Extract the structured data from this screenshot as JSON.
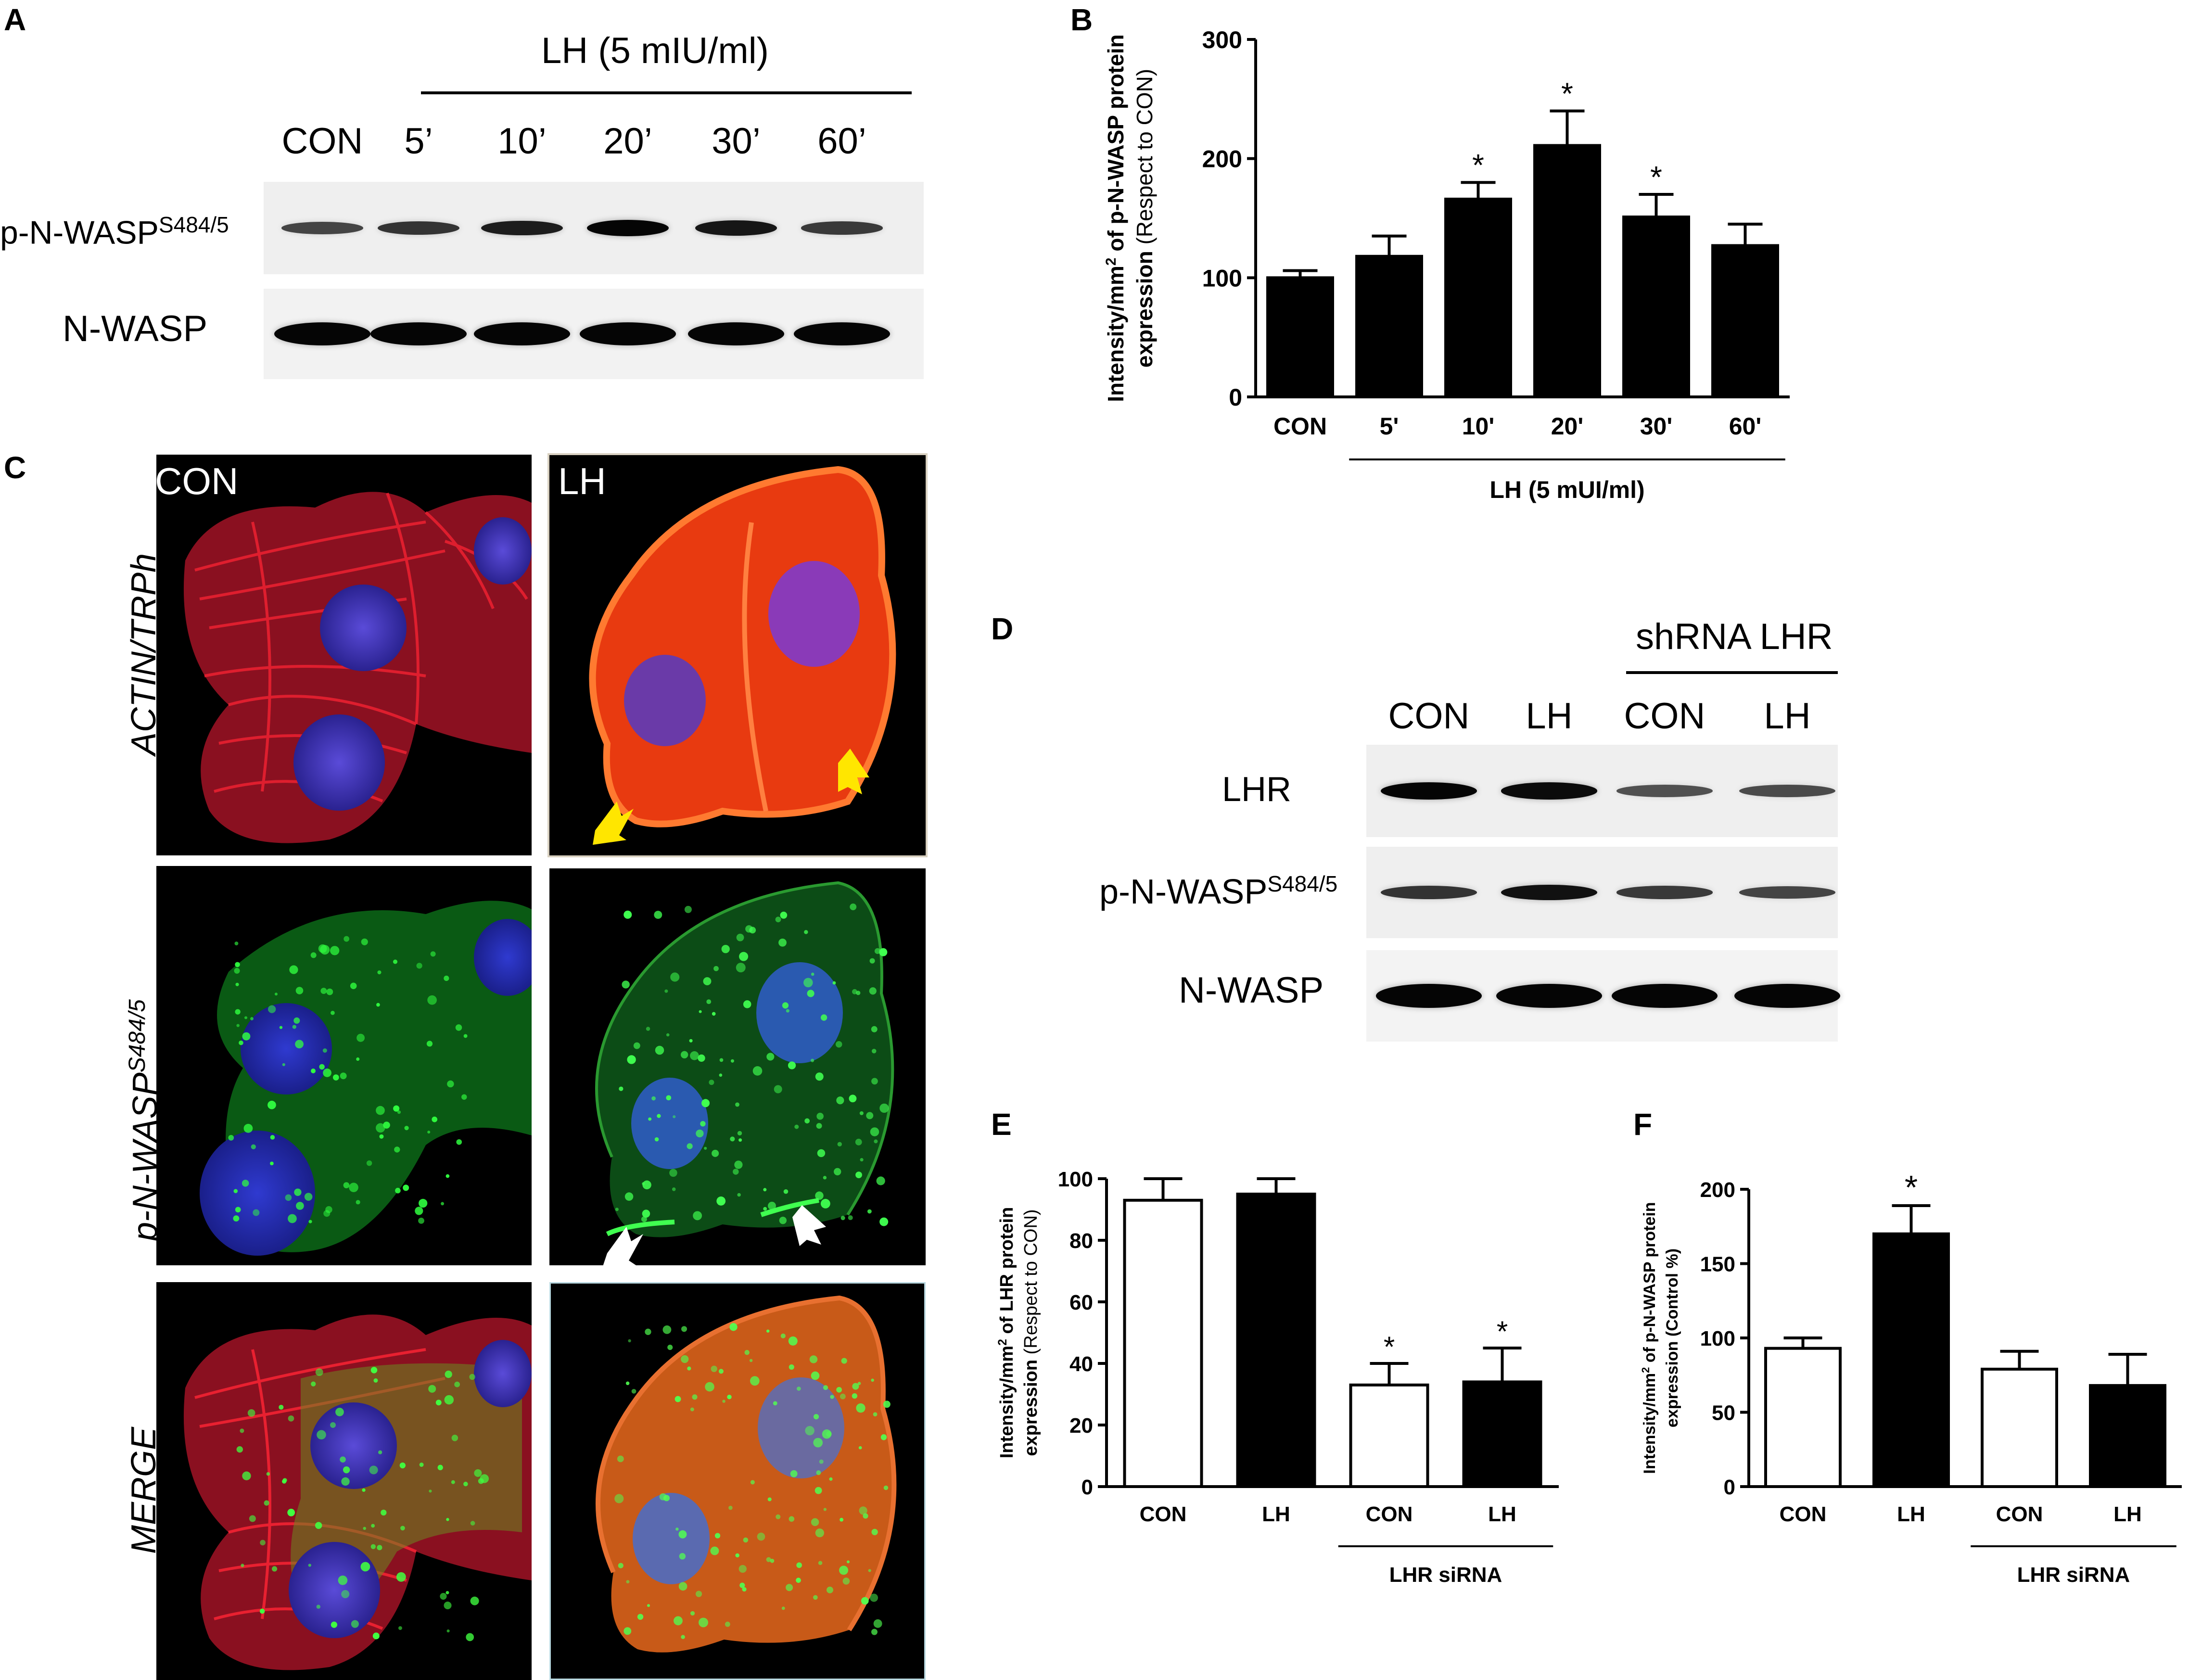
{
  "panels": {
    "A": "A",
    "B": "B",
    "C": "C",
    "D": "D",
    "E": "E",
    "F": "F"
  },
  "blot_a": {
    "treatment": "LH (5 mIU/ml)",
    "lanes": [
      "CON",
      "5’",
      "10’",
      "20’",
      "30’",
      "60’"
    ],
    "row_labels": {
      "phospho": "p-N-WASP",
      "phospho_sup": "S484/5",
      "total": "N-WASP"
    },
    "phospho_intensity": [
      0.45,
      0.6,
      0.8,
      1.0,
      0.85,
      0.55
    ],
    "total_intensity": [
      1,
      1,
      1,
      1,
      1,
      1
    ]
  },
  "blot_d": {
    "group": "shRNA LHR",
    "lanes": [
      "CON",
      "LH",
      "CON",
      "LH"
    ],
    "row_labels": {
      "lhr": "LHR",
      "phospho": "p-N-WASP",
      "phospho_sup": "S484/5",
      "total": "N-WASP"
    },
    "lhr_intensity": [
      1.0,
      0.95,
      0.35,
      0.4
    ],
    "phospho_intensity": [
      0.6,
      0.9,
      0.55,
      0.45
    ],
    "total_intensity": [
      1,
      1,
      1,
      1
    ]
  },
  "micrographs": {
    "columns": [
      "CON",
      "LH"
    ],
    "rows": [
      "ACTIN/TRPh",
      "p-N-WASP",
      "MERGE"
    ],
    "row2_sup": "S484/5",
    "arrow_colors": {
      "actin": "#ffe600",
      "pnwasp": "#ffffff"
    }
  },
  "chart_data": [
    {
      "id": "B",
      "type": "bar",
      "categories": [
        "CON",
        "5'",
        "10'",
        "20'",
        "30'",
        "60'"
      ],
      "values": [
        100,
        118,
        166,
        211,
        151,
        127
      ],
      "errors": [
        6,
        17,
        14,
        29,
        19,
        18
      ],
      "significant": [
        false,
        false,
        true,
        true,
        true,
        false
      ],
      "bar_fill": [
        "#000000",
        "#000000",
        "#000000",
        "#000000",
        "#000000",
        "#000000"
      ],
      "ylim": [
        0,
        300
      ],
      "yticks": [
        0,
        100,
        200,
        300
      ],
      "ylabel_line1": "Intensity/mm",
      "ylabel_sup": "2",
      "ylabel_line1_rest": " of p-N-WASP protein",
      "ylabel_line2": "expression",
      "ylabel_line2_note": " (Respect to  CON)",
      "group_label": "LH (5 mUI/ml)",
      "group_range": [
        1,
        5
      ]
    },
    {
      "id": "E",
      "type": "bar",
      "categories": [
        "CON",
        "LH",
        "CON",
        "LH"
      ],
      "values": [
        93,
        95,
        33,
        34
      ],
      "errors": [
        7,
        5,
        7,
        11
      ],
      "significant": [
        false,
        false,
        true,
        true
      ],
      "bar_fill": [
        "#ffffff",
        "#000000",
        "#ffffff",
        "#000000"
      ],
      "ylim": [
        0,
        100
      ],
      "yticks": [
        0,
        20,
        40,
        60,
        80,
        100
      ],
      "ylabel_line1": "Intensity/mm",
      "ylabel_sup": "2",
      "ylabel_line1_rest": " of LHR protein",
      "ylabel_line2": "expression",
      "ylabel_line2_note": " (Respect to CON)",
      "group_label": "LHR siRNA",
      "group_range": [
        2,
        3
      ]
    },
    {
      "id": "F",
      "type": "bar",
      "categories": [
        "CON",
        "LH",
        "CON",
        "LH"
      ],
      "values": [
        93,
        170,
        79,
        68
      ],
      "errors": [
        7,
        19,
        12,
        21
      ],
      "significant": [
        false,
        true,
        false,
        false
      ],
      "bar_fill": [
        "#ffffff",
        "#000000",
        "#ffffff",
        "#000000"
      ],
      "ylim": [
        0,
        200
      ],
      "yticks": [
        0,
        50,
        100,
        150,
        200
      ],
      "ylabel_line1": "Intensity/mm",
      "ylabel_sup": "2",
      "ylabel_line1_rest": " of p-N-WASP protein",
      "ylabel_line2": "expression (Control %)",
      "ylabel_line2_note": "",
      "group_label": "LHR siRNA",
      "group_range": [
        2,
        3
      ]
    }
  ]
}
